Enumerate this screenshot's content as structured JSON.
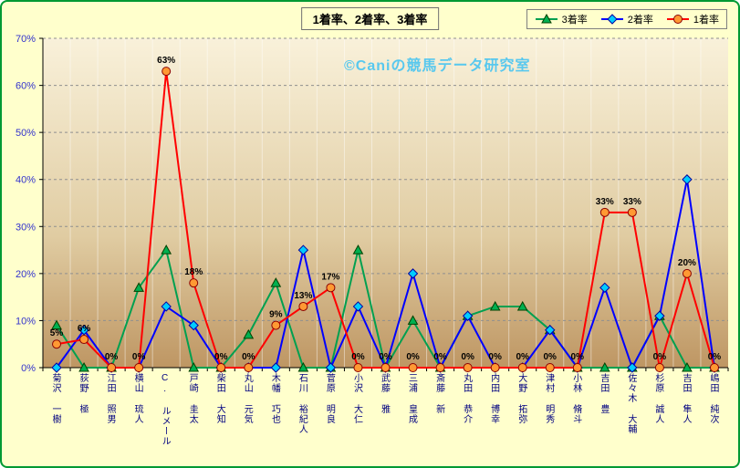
{
  "watermark": "©Caniの競馬データ研究室",
  "colors": {
    "page_bg": "#FFFFCC",
    "panel_border": "#009933",
    "plot_gradient_top": "#F9F1DA",
    "plot_gradient_mid": "#E0CCA2",
    "plot_gradient_bottom": "#BE9663",
    "gridline": "#8F8F8F",
    "y_tick_label": "#3333CC",
    "x_tick_label": "#000080",
    "watermark": "#58C8EE",
    "data_label": "#000000"
  },
  "chart_data": {
    "type": "line",
    "title": "1着率、2着率、3着率",
    "xlabel": "",
    "ylabel": "",
    "ylim": [
      0,
      70
    ],
    "ytick_step": 10,
    "ytick_labels": [
      "0%",
      "10%",
      "20%",
      "30%",
      "40%",
      "50%",
      "60%",
      "70%"
    ],
    "grid": "horizontal-dashed",
    "legend_position": "top-right",
    "categories": [
      "菊沢 一樹",
      "荻野 極",
      "江田 照男",
      "横山 琉人",
      "C. ルメール",
      "戸崎 圭太",
      "柴田 大知",
      "丸山 元気",
      "木幡 巧也",
      "石川 裕紀人",
      "菅原 明良",
      "小沢 大仁",
      "武藤 雅",
      "三浦 皇成",
      "斎藤 新",
      "丸田 恭介",
      "内田 博幸",
      "大野 拓弥",
      "津村 明秀",
      "小林 脩斗",
      "吉田 豊",
      "佐々木 大輔",
      "杉原 誠人",
      "吉田 隼人",
      "嶋田 純次"
    ],
    "series": [
      {
        "name": "3着率",
        "marker": "triangle",
        "line_color": "#00A050",
        "marker_fill": "#00B050",
        "marker_stroke": "#004000",
        "show_labels": false,
        "values": [
          9,
          0,
          0,
          17,
          25,
          0,
          0,
          7,
          18,
          0,
          0,
          25,
          0,
          10,
          0,
          11,
          13,
          13,
          8,
          0,
          0,
          0,
          11,
          0,
          0
        ]
      },
      {
        "name": "2着率",
        "marker": "diamond",
        "line_color": "#0000FF",
        "marker_fill": "#00CCFF",
        "marker_stroke": "#0000A0",
        "show_labels": false,
        "values": [
          0,
          8,
          0,
          0,
          13,
          9,
          0,
          0,
          0,
          25,
          0,
          13,
          0,
          20,
          0,
          11,
          0,
          0,
          8,
          0,
          17,
          0,
          11,
          40,
          0
        ]
      },
      {
        "name": "1着率",
        "marker": "circle",
        "line_color": "#FF0000",
        "marker_fill": "#FF9933",
        "marker_stroke": "#8B0000",
        "show_labels": true,
        "values": [
          5,
          6,
          0,
          0,
          63,
          18,
          0,
          0,
          9,
          13,
          17,
          0,
          0,
          0,
          0,
          0,
          0,
          0,
          0,
          0,
          33,
          33,
          0,
          20,
          0
        ],
        "labels": [
          "5%",
          "6%",
          "0%",
          "0%",
          "63%",
          "18%",
          "0%",
          "0%",
          "9%",
          "13%",
          "17%",
          "0%",
          "0%",
          "0%",
          "0%",
          "0%",
          "0%",
          "0%",
          "0%",
          "0%",
          "33%",
          "33%",
          "0%",
          "20%",
          "0%"
        ]
      }
    ]
  }
}
